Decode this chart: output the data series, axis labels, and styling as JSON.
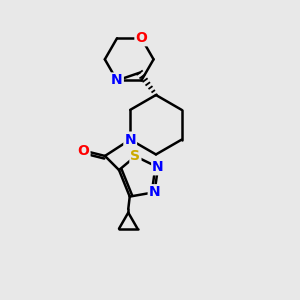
{
  "background_color": "#e8e8e8",
  "bond_color": "#000000",
  "atom_colors": {
    "N": "#0000ff",
    "O": "#ff0000",
    "S": "#ccaa00",
    "C": "#000000"
  },
  "figsize": [
    3.0,
    3.0
  ],
  "dpi": 100
}
